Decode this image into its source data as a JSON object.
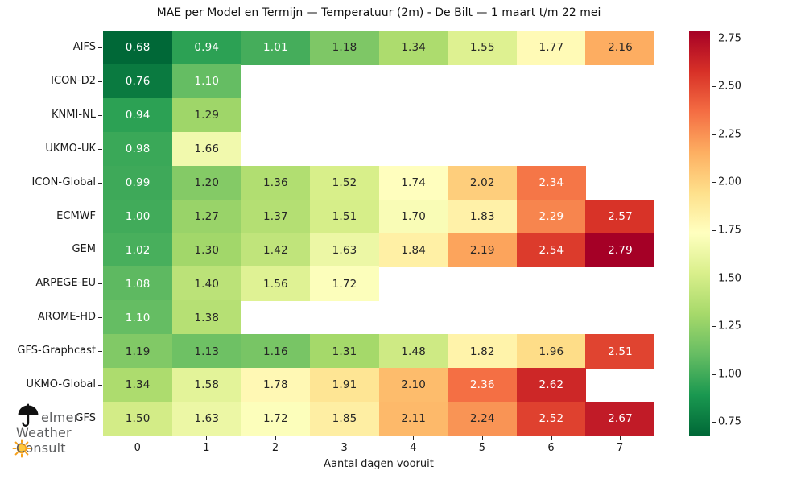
{
  "chart_data": {
    "type": "heatmap",
    "title": "MAE per Model en Termijn — Temperatuur (2m) - De Bilt — 1 maart t/m 22 mei",
    "xlabel": "Aantal dagen vooruit",
    "ylabel": "",
    "x_categories": [
      "0",
      "1",
      "2",
      "3",
      "4",
      "5",
      "6",
      "7"
    ],
    "models": [
      {
        "name": "AIFS",
        "values": [
          0.68,
          0.94,
          1.01,
          1.18,
          1.34,
          1.55,
          1.77,
          2.16
        ]
      },
      {
        "name": "ICON-D2",
        "values": [
          0.76,
          1.1,
          null,
          null,
          null,
          null,
          null,
          null
        ]
      },
      {
        "name": "KNMI-NL",
        "values": [
          0.94,
          1.29,
          null,
          null,
          null,
          null,
          null,
          null
        ]
      },
      {
        "name": "UKMO-UK",
        "values": [
          0.98,
          1.66,
          null,
          null,
          null,
          null,
          null,
          null
        ]
      },
      {
        "name": "ICON-Global",
        "values": [
          0.99,
          1.2,
          1.36,
          1.52,
          1.74,
          2.02,
          2.34,
          null
        ]
      },
      {
        "name": "ECMWF",
        "values": [
          1.0,
          1.27,
          1.37,
          1.51,
          1.7,
          1.83,
          2.29,
          2.57
        ]
      },
      {
        "name": "GEM",
        "values": [
          1.02,
          1.3,
          1.42,
          1.63,
          1.84,
          2.19,
          2.54,
          2.79
        ]
      },
      {
        "name": "ARPEGE-EU",
        "values": [
          1.08,
          1.4,
          1.56,
          1.72,
          null,
          null,
          null,
          null
        ]
      },
      {
        "name": "AROME-HD",
        "values": [
          1.1,
          1.38,
          null,
          null,
          null,
          null,
          null,
          null
        ]
      },
      {
        "name": "GFS-Graphcast",
        "values": [
          1.19,
          1.13,
          1.16,
          1.31,
          1.48,
          1.82,
          1.96,
          2.51
        ]
      },
      {
        "name": "UKMO-Global",
        "values": [
          1.34,
          1.58,
          1.78,
          1.91,
          2.1,
          2.36,
          2.62,
          null
        ]
      },
      {
        "name": "GFS",
        "values": [
          1.5,
          1.63,
          1.72,
          1.85,
          2.11,
          2.24,
          2.52,
          2.67
        ]
      }
    ],
    "vmin": 0.68,
    "vmax": 2.79,
    "value_format_decimals": 2,
    "colormap": {
      "name": "RdYlGn_r",
      "anchors_high_to_low": [
        "#a50026",
        "#d73027",
        "#f46d43",
        "#fdae61",
        "#fee08b",
        "#ffffbf",
        "#d9ef8b",
        "#a6d96a",
        "#66bd63",
        "#1a9850",
        "#006837"
      ]
    },
    "annotation_colors": {
      "dark": "#262626",
      "light": "#ffffff"
    },
    "colorbar_ticks": [
      2.75,
      2.5,
      2.25,
      2.0,
      1.75,
      1.5,
      1.25,
      1.0,
      0.75
    ],
    "grid": false,
    "legend_position": "right-colorbar"
  },
  "logo": {
    "icons": [
      "umbrella-icon",
      "sun-icon"
    ],
    "line1": "elmer",
    "line2": "Weather",
    "line3_initial": "C",
    "line3_rest": "onsult",
    "colors": {
      "text": "#5b5c5e",
      "umbrella": "#111111",
      "sun_ray": "#f6a01a",
      "sun_core": "#ffc83d"
    }
  }
}
